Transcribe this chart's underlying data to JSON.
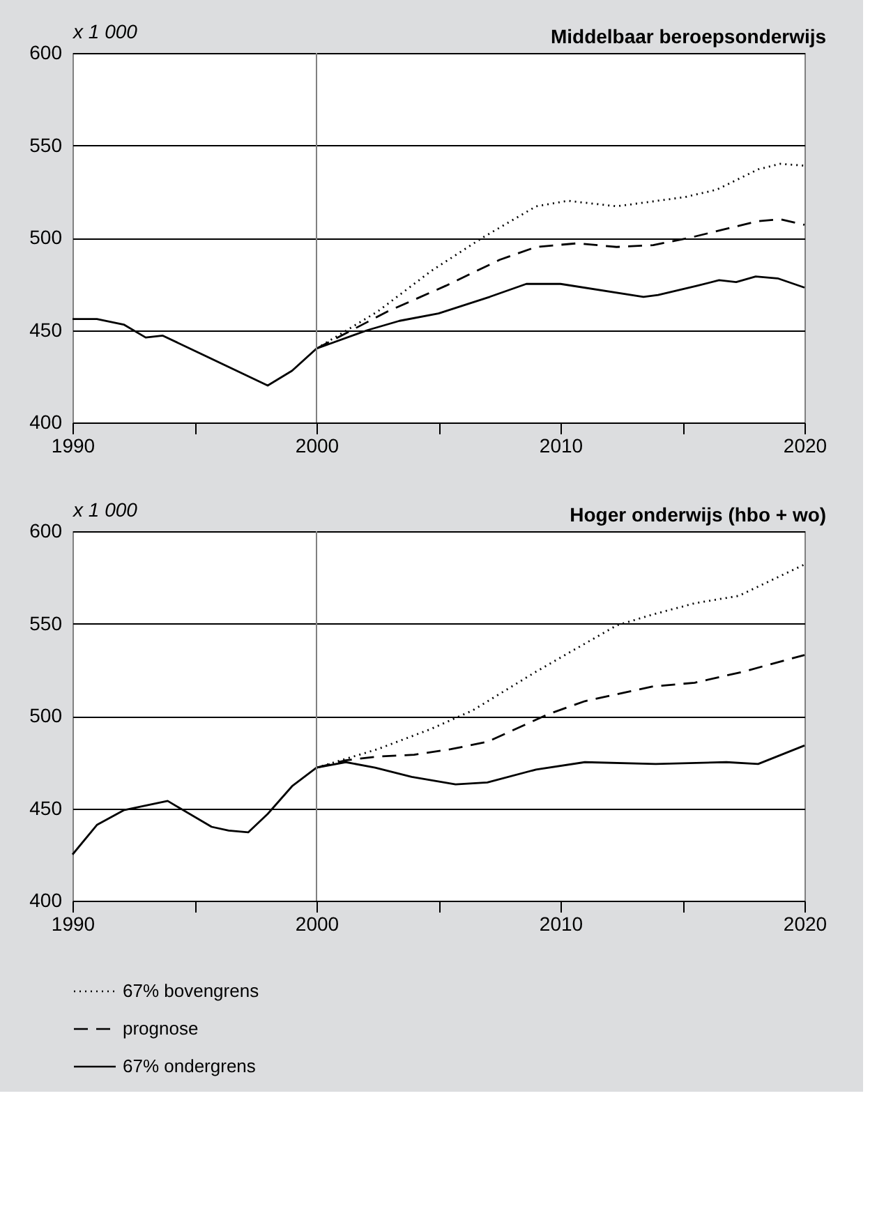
{
  "chart_data": [
    {
      "type": "line",
      "title": "Middelbaar beroepsonderwijs",
      "ylabel": "x 1 000",
      "xlim": [
        1990,
        2020
      ],
      "ylim": [
        400,
        600
      ],
      "xticks": [
        1990,
        {
          "value": 1995,
          "label": null
        },
        2000,
        {
          "value": 2005,
          "label": null
        },
        2010,
        {
          "value": 2015,
          "label": null
        },
        2020
      ],
      "yticks": [
        400,
        450,
        500,
        550,
        600
      ],
      "grid": "y",
      "legend": false,
      "ref_lines": [
        {
          "axis": "x",
          "value": 2000,
          "label": null,
          "color": "#808080"
        }
      ],
      "series": [
        {
          "color": "#000000",
          "line_style": "dotted",
          "x": [
            2000,
            2002.5,
            2004.7,
            2006.8,
            2009,
            2010.3,
            2012.3,
            2015.1,
            2016.4,
            2018.1,
            2019,
            2020
          ],
          "values": [
            440,
            460,
            482,
            500,
            517,
            520,
            517,
            522,
            526,
            537,
            540,
            539
          ]
        },
        {
          "color": "#000000",
          "line_style": "dashed",
          "x": [
            2000,
            2002.9,
            2005.3,
            2007.5,
            2009,
            2010.7,
            2012.3,
            2013.8,
            2015.3,
            2018.1,
            2019,
            2020
          ],
          "values": [
            440,
            460,
            474,
            488,
            495,
            497,
            495,
            496,
            500,
            509,
            510,
            507
          ]
        },
        {
          "color": "#000000",
          "line_style": "solid",
          "x": [
            1990,
            1991,
            1992.1,
            1993,
            1993.7,
            1998,
            1999,
            2000,
            2002.1,
            2003.4,
            2005,
            2007.1,
            2008.6,
            2010,
            2013.4,
            2014,
            2015.6,
            2016.5,
            2017.2,
            2018,
            2018.9,
            2020
          ],
          "values": [
            456,
            456,
            453,
            446,
            447,
            420,
            428,
            440,
            450,
            455,
            459,
            468,
            475,
            475,
            468,
            469,
            474,
            477,
            476,
            479,
            478,
            473
          ]
        }
      ]
    },
    {
      "type": "line",
      "title": "Hoger onderwijs (hbo + wo)",
      "ylabel": "x 1 000",
      "xlim": [
        1990,
        2020
      ],
      "ylim": [
        400,
        600
      ],
      "xticks": [
        1990,
        {
          "value": 1995,
          "label": null
        },
        2000,
        {
          "value": 2005,
          "label": null
        },
        2010,
        {
          "value": 2015,
          "label": null
        },
        2020
      ],
      "yticks": [
        400,
        450,
        500,
        550,
        600
      ],
      "grid": "y",
      "legend": "bottom",
      "ref_lines": [
        {
          "axis": "x",
          "value": 2000,
          "label": null,
          "color": "#808080"
        }
      ],
      "series": [
        {
          "name": "67% bovengrens",
          "color": "#000000",
          "line_style": "dotted",
          "x": [
            2000,
            2002.5,
            2004.7,
            2006.4,
            2009,
            2012.3,
            2013.8,
            2015.5,
            2017.3,
            2020
          ],
          "values": [
            472,
            482,
            493,
            503,
            524,
            549,
            555,
            561,
            565,
            582
          ]
        },
        {
          "name": "prognose",
          "color": "#000000",
          "line_style": "dashed",
          "x": [
            2000,
            2001.2,
            2002.5,
            2004,
            2005.5,
            2007,
            2009.5,
            2011,
            2013.8,
            2015.5,
            2017.5,
            2020
          ],
          "values": [
            472,
            476,
            478,
            479,
            482,
            486,
            501,
            508,
            516,
            518,
            524,
            533
          ]
        },
        {
          "name": "67% ondergrens",
          "color": "#000000",
          "line_style": "solid",
          "x": [
            1990,
            1991,
            1992.1,
            1993.9,
            1995.7,
            1996.4,
            1997.2,
            1998,
            1999,
            2000,
            2001.2,
            2002.4,
            2003.9,
            2005.7,
            2007,
            2009,
            2011,
            2013.9,
            2016.8,
            2018.1,
            2020
          ],
          "values": [
            425,
            441,
            449,
            454,
            440,
            438,
            437,
            447,
            462,
            472,
            475,
            472,
            467,
            463,
            464,
            471,
            475,
            474,
            475,
            474,
            484
          ]
        }
      ]
    }
  ]
}
